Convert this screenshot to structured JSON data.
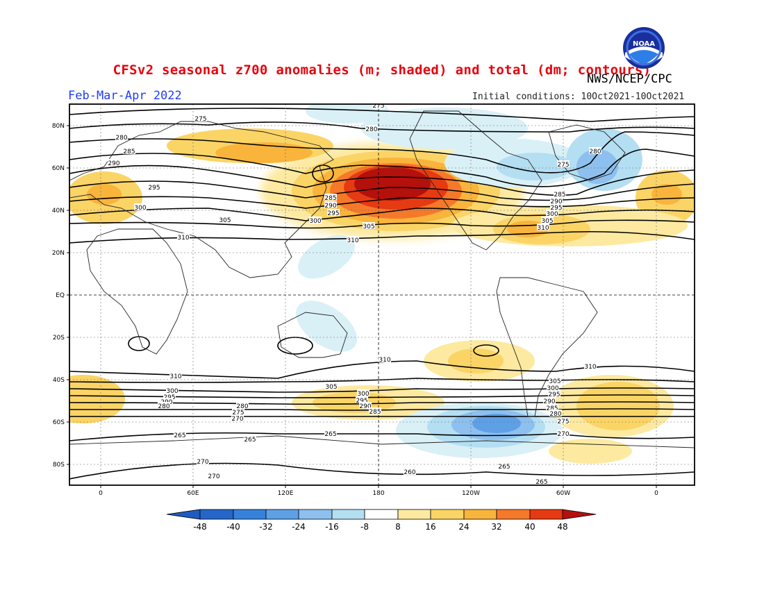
{
  "title": "CFSv2 seasonal z700 anomalies (m; shaded) and total (dm; contours)",
  "agency": "NWS/NCEP/CPC",
  "season": "Feb-Mar-Apr 2022",
  "initial_conditions": "Initial conditions: 10Oct2021-10Oct2021",
  "logo_text": "NOAA",
  "colors": {
    "title": "#e8000b",
    "season": "#1f3cff",
    "neg48": "#2566c8",
    "neg40": "#3682db",
    "neg32": "#5ea0e6",
    "neg24": "#8dc0ee",
    "neg16": "#b4def2",
    "neg8": "#d9f0f6",
    "pos8": "#fde9a0",
    "pos16": "#fbd466",
    "pos24": "#f9b43c",
    "pos32": "#f5792a",
    "pos40": "#e63a12",
    "pos48": "#b4100c"
  },
  "lat_labels": [
    "80N",
    "60N",
    "40N",
    "20N",
    "EQ",
    "20S",
    "40S",
    "60S",
    "80S"
  ],
  "lon_labels": [
    "0",
    "60E",
    "120E",
    "180",
    "120W",
    "60W",
    "0"
  ],
  "colorbar_labels": [
    "-48",
    "-40",
    "-32",
    "-24",
    "-16",
    "-8",
    "8",
    "16",
    "24",
    "32",
    "40",
    "48"
  ],
  "contour_labels": {
    "c275": "275",
    "c280": "280",
    "c285": "285",
    "c290": "290",
    "c295": "295",
    "c300": "300",
    "c305": "305",
    "c310": "310",
    "c265": "265",
    "c270": "270",
    "c260": "260"
  }
}
